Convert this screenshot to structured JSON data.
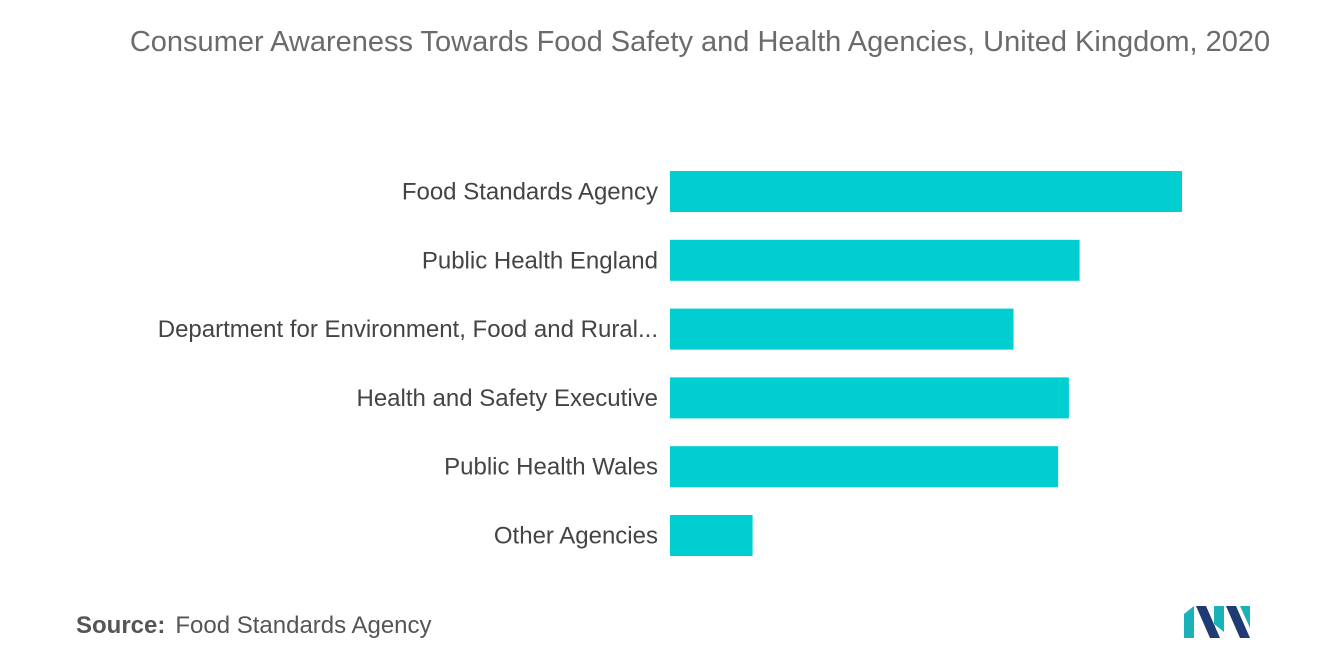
{
  "title": "Consumer Awareness Towards Food Safety and Health Agencies, United Kingdom, 2020",
  "source": {
    "label": "Source:",
    "text": "Food Standards Agency"
  },
  "colors": {
    "bar": "#00CED1",
    "logo_teal": "#1ab1b9",
    "logo_navy": "#1f3b73"
  },
  "logo_icon": "mordor-intelligence-logo-icon",
  "chart_data": {
    "type": "bar",
    "orientation": "horizontal",
    "categories": [
      "Food Standards Agency",
      "Public Health England",
      "Department for Environment, Food and Rural...",
      "Health and Safety Executive",
      "Public Health Wales",
      "Other Agencies"
    ],
    "values": [
      62,
      49.6,
      41.6,
      48.3,
      47,
      10
    ],
    "xlim": [
      0,
      62
    ],
    "grid": false,
    "legend": "none"
  }
}
